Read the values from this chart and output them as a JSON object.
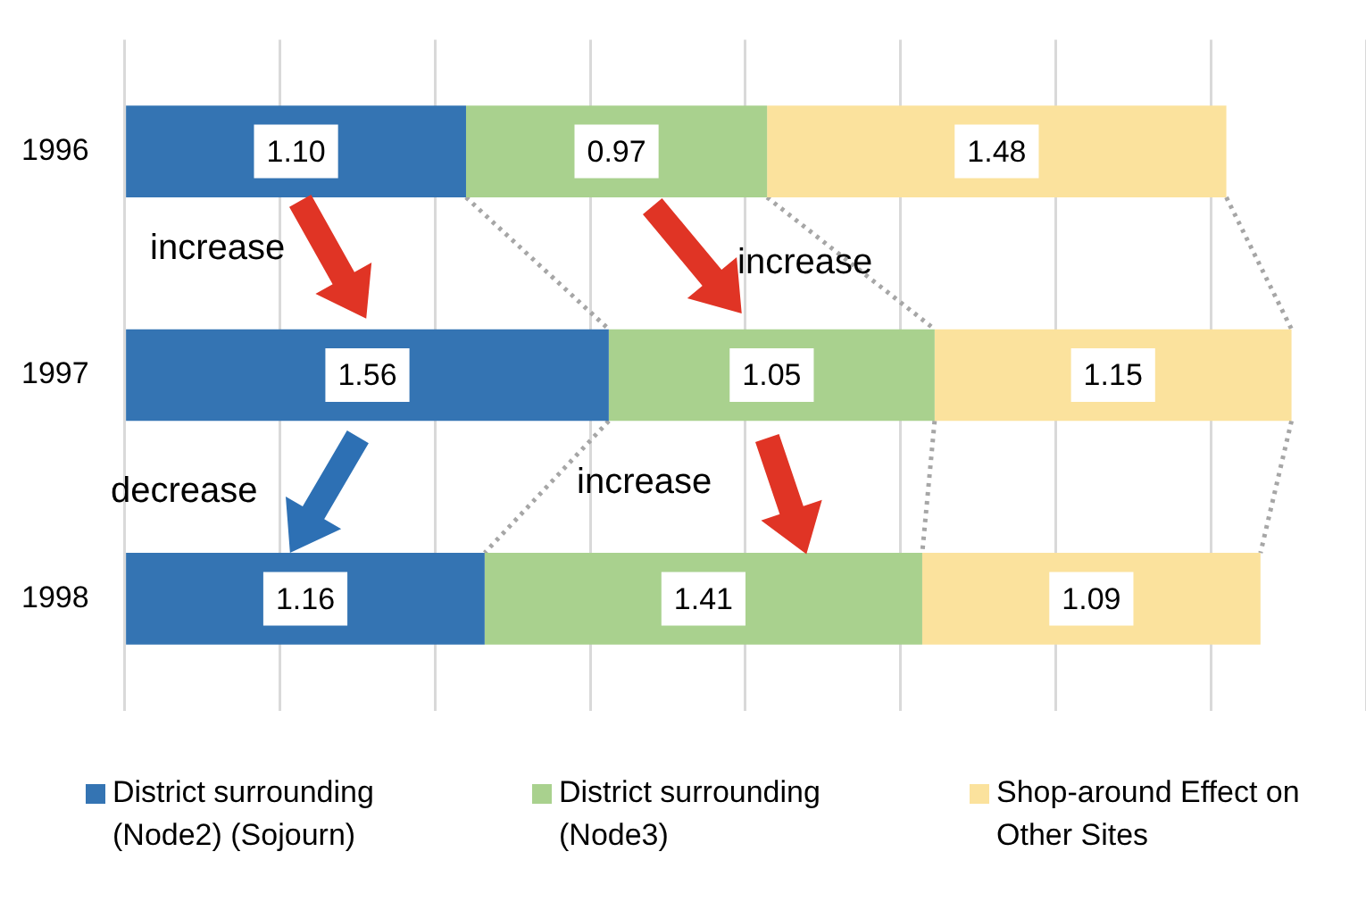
{
  "chart_data": {
    "type": "bar",
    "orientation": "horizontal",
    "stacked": true,
    "categories": [
      "1996",
      "1997",
      "1998"
    ],
    "series": [
      {
        "name": "District surrounding (Node2) (Sojourn)",
        "color": "#3474b3",
        "values": [
          1.1,
          1.56,
          1.16
        ],
        "value_labels": [
          "1.10",
          "1.56",
          "1.16"
        ]
      },
      {
        "name": "District surrounding (Node3)",
        "color": "#a9d18e",
        "values": [
          0.97,
          1.05,
          1.41
        ],
        "value_labels": [
          "0.97",
          "1.05",
          "1.41"
        ]
      },
      {
        "name": "Shop-around Effect on Other Sites",
        "color": "#fbe29d",
        "values": [
          1.48,
          1.15,
          1.09
        ],
        "value_labels": [
          "1.48",
          "1.15",
          "1.09"
        ]
      }
    ],
    "tick_labels": "y",
    "grid": "x",
    "legend": "bottom",
    "annotations": [
      "increase",
      "increase",
      "decrease",
      "increase"
    ]
  }
}
